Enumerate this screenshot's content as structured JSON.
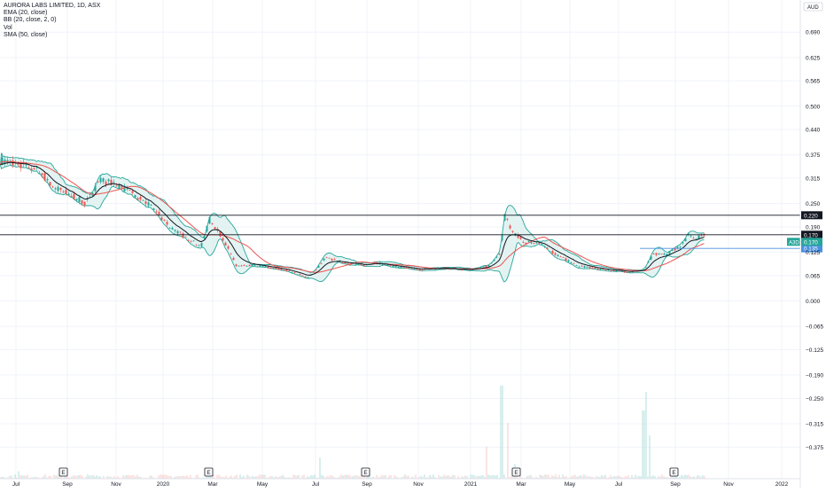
{
  "chart_data": {
    "type": "candlestick",
    "symbol_title": "AURORA LABS LIMITED, 1D, ASX",
    "currency": "AUD",
    "indicators": [
      "EMA (20, close)",
      "BB (20, close, 2, 0)",
      "Vol",
      "SMA (50, close)"
    ],
    "y_tick_labels": [
      "0.690",
      "0.625",
      "0.565",
      "0.500",
      "0.440",
      "0.375",
      "0.315",
      "0.250",
      "0.190",
      "0.125",
      "0.065",
      "0.000",
      "−0.065",
      "−0.125",
      "−0.190",
      "−0.250",
      "−0.315",
      "−0.375"
    ],
    "x_tick_labels": [
      "Jul",
      "Sep",
      "Nov",
      "2020",
      "Mar",
      "May",
      "Jul",
      "Sep",
      "Nov",
      "2021",
      "Mar",
      "May",
      "Jul",
      "Sep",
      "Nov",
      "2022"
    ],
    "earnings_marker": "E",
    "ylim": [
      -0.41,
      0.73
    ],
    "horizontal_levels": [
      {
        "price": 0.22,
        "label": "0.220",
        "color": "#131722"
      },
      {
        "price": 0.17,
        "label": "0.170",
        "color": "#131722"
      },
      {
        "price": 0.135,
        "label": "0.135",
        "color": "#4a90e2"
      }
    ],
    "last_price": {
      "symbol": "A3D",
      "label": "0.170",
      "color": "#26a69a"
    },
    "price_series": {
      "key_points": [
        [
          0,
          0.36
        ],
        [
          20,
          0.35
        ],
        [
          40,
          0.34
        ],
        [
          60,
          0.29
        ],
        [
          80,
          0.27
        ],
        [
          95,
          0.25
        ],
        [
          110,
          0.31
        ],
        [
          130,
          0.3
        ],
        [
          150,
          0.27
        ],
        [
          170,
          0.24
        ],
        [
          190,
          0.19
        ],
        [
          210,
          0.16
        ],
        [
          225,
          0.14
        ],
        [
          235,
          0.21
        ],
        [
          250,
          0.16
        ],
        [
          265,
          0.09
        ],
        [
          290,
          0.09
        ],
        [
          320,
          0.08
        ],
        [
          345,
          0.06
        ],
        [
          355,
          0.08
        ],
        [
          365,
          0.11
        ],
        [
          385,
          0.1
        ],
        [
          410,
          0.09
        ],
        [
          420,
          0.1
        ],
        [
          440,
          0.09
        ],
        [
          470,
          0.08
        ],
        [
          500,
          0.085
        ],
        [
          530,
          0.08
        ],
        [
          550,
          0.09
        ],
        [
          562,
          0.12
        ],
        [
          568,
          0.22
        ],
        [
          575,
          0.18
        ],
        [
          590,
          0.15
        ],
        [
          605,
          0.15
        ],
        [
          625,
          0.12
        ],
        [
          650,
          0.09
        ],
        [
          680,
          0.08
        ],
        [
          710,
          0.075
        ],
        [
          725,
          0.08
        ],
        [
          735,
          0.12
        ],
        [
          750,
          0.12
        ],
        [
          765,
          0.14
        ],
        [
          775,
          0.17
        ],
        [
          785,
          0.16
        ],
        [
          790,
          0.17
        ]
      ],
      "volume_spikes": [
        [
          20,
          0.06
        ],
        [
          360,
          0.17
        ],
        [
          548,
          0.26
        ],
        [
          565,
          0.75
        ],
        [
          572,
          0.45
        ],
        [
          580,
          0.12
        ],
        [
          725,
          0.55
        ],
        [
          728,
          0.7
        ],
        [
          732,
          0.35
        ],
        [
          760,
          0.07
        ]
      ]
    }
  },
  "colors": {
    "up": "#26a69a",
    "down": "#ef5350",
    "ema": "#131722",
    "sma": "#ef5350",
    "bb": "#26a69a",
    "bb_fill": "#e0f2f1",
    "grid": "#f0f3fa",
    "axis_text": "#131722"
  }
}
